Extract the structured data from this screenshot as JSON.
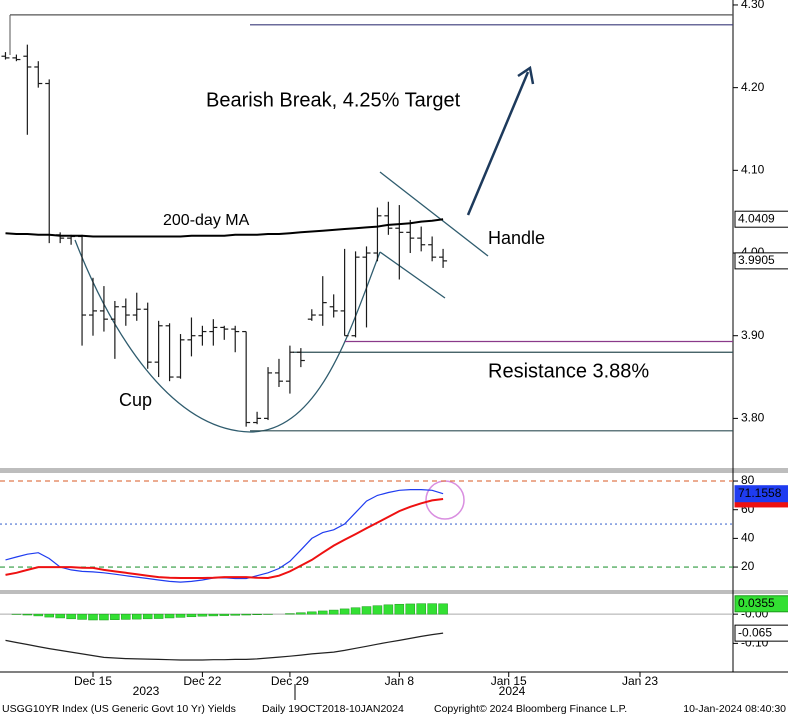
{
  "chart_data": [
    {
      "type": "ohlc",
      "categories": [
        null,
        null,
        null,
        null,
        null,
        null,
        null,
        null,
        null,
        null,
        null,
        null,
        null,
        null,
        null,
        null,
        null,
        null,
        null,
        null,
        null,
        null,
        null,
        null,
        null,
        null,
        null,
        null,
        null,
        null,
        null,
        null,
        null,
        null,
        null,
        null,
        null,
        null,
        null,
        null,
        null
      ],
      "xlim": [
        -0.5,
        66.5
      ],
      "xticks": [
        {
          "value": 8,
          "label": "Dec 15"
        },
        {
          "value": 18,
          "label": "Dec 22"
        },
        {
          "value": 26,
          "label": "Dec 29"
        },
        {
          "value": 36,
          "label": "Jan 8"
        },
        {
          "value": 46,
          "label": "Jan 15"
        },
        {
          "value": 58,
          "label": "Jan 23"
        }
      ],
      "open": [
        4.238,
        4.236,
        4.238,
        4.225,
        4.205,
        4.022,
        4.018,
        4.02,
        3.925,
        3.93,
        3.92,
        3.935,
        3.925,
        3.932,
        3.868,
        3.912,
        3.85,
        3.895,
        3.9,
        3.905,
        3.91,
        3.908,
        3.905,
        3.795,
        3.8,
        3.855,
        3.845,
        3.88,
        3.92,
        3.925,
        3.935,
        3.93,
        3.9,
        3.995,
        4.0,
        4.045,
        4.03,
        4.025,
        4.018,
        4.01,
        3.995
      ],
      "high": [
        4.243,
        4.24,
        4.252,
        4.232,
        4.21,
        4.025,
        4.022,
        4.022,
        3.97,
        3.96,
        3.942,
        3.945,
        3.952,
        3.94,
        3.918,
        3.915,
        3.902,
        3.922,
        3.912,
        3.92,
        3.912,
        3.912,
        3.905,
        3.808,
        3.862,
        3.872,
        3.888,
        3.885,
        3.932,
        3.972,
        3.95,
        4.005,
        4.002,
        4.008,
        4.055,
        4.062,
        4.058,
        4.04,
        4.032,
        4.02,
        4.005
      ],
      "low": [
        4.234,
        4.232,
        4.143,
        4.2,
        4.012,
        4.012,
        4.01,
        3.888,
        3.9,
        3.905,
        3.872,
        3.912,
        3.918,
        3.86,
        3.85,
        3.845,
        3.848,
        3.875,
        3.888,
        3.888,
        3.895,
        3.88,
        3.79,
        3.793,
        3.798,
        3.838,
        3.83,
        3.862,
        3.918,
        3.912,
        3.922,
        3.9,
        3.898,
        3.91,
        3.99,
        4.022,
        3.968,
        4.0,
        4.002,
        3.99,
        3.982
      ],
      "close": [
        4.236,
        4.234,
        4.225,
        4.205,
        4.022,
        4.018,
        4.02,
        3.925,
        3.93,
        3.92,
        3.935,
        3.925,
        3.932,
        3.868,
        3.912,
        3.85,
        3.895,
        3.9,
        3.905,
        3.91,
        3.908,
        3.905,
        3.795,
        3.8,
        3.855,
        3.845,
        3.88,
        3.87,
        3.925,
        3.94,
        3.93,
        3.9,
        3.995,
        4.0,
        4.045,
        4.03,
        4.025,
        4.018,
        4.01,
        3.995,
        3.9905
      ],
      "color": "#1a1a1a",
      "series": [
        {
          "name": "200-day MA",
          "color": "#000000",
          "values": [
            4.024,
            4.023,
            4.023,
            4.022,
            4.022,
            4.021,
            4.021,
            4.021,
            4.02,
            4.02,
            4.02,
            4.02,
            4.02,
            4.02,
            4.02,
            4.02,
            4.02,
            4.021,
            4.021,
            4.021,
            4.021,
            4.022,
            4.022,
            4.022,
            4.023,
            4.023,
            4.024,
            4.025,
            4.026,
            4.027,
            4.028,
            4.029,
            4.03,
            4.031,
            4.032,
            4.034,
            4.035,
            4.036,
            4.038,
            4.039,
            4.0409
          ]
        }
      ],
      "ylim": [
        3.74,
        4.306
      ],
      "yticks": [
        {
          "value": 4.3,
          "label": "4.30"
        },
        {
          "value": 4.2,
          "label": "4.20"
        },
        {
          "value": 4.1,
          "label": "4.10"
        },
        {
          "value": 4.0,
          "label": "4.00"
        },
        {
          "value": 3.9,
          "label": "3.90"
        },
        {
          "value": 3.8,
          "label": "3.80"
        }
      ],
      "levels": [
        {
          "value": 4.288,
          "color": "#555555"
        },
        {
          "value": 4.276,
          "color": "#3a3a7a"
        },
        {
          "value": 3.88,
          "color": "#2f4f55"
        },
        {
          "value": 3.893,
          "color": "#8a3a8a"
        },
        {
          "value": 3.785,
          "color": "#2f4f55"
        }
      ],
      "annotations": [
        "Bearish Break, 4.25% Target",
        "Handle",
        "Cup",
        "Resistance 3.88%"
      ]
    },
    {
      "type": "line",
      "series": [
        {
          "color": "#1f3cf0",
          "values": [
            25,
            27,
            29,
            30,
            26,
            20,
            18,
            17,
            16.6,
            16,
            15,
            14,
            13,
            12,
            11,
            10,
            9.5,
            10,
            11,
            12.4,
            12.5,
            12,
            12,
            14,
            16,
            19,
            24,
            32,
            40,
            44,
            46,
            50,
            58,
            66,
            70,
            72,
            73.5,
            74,
            74,
            73.5,
            71.1558
          ]
        },
        {
          "color": "#ee1111",
          "values": [
            14.5,
            16,
            18,
            20,
            20,
            20,
            20,
            19.5,
            19.4,
            18,
            17,
            16,
            15,
            14,
            13,
            12.5,
            12.4,
            12.4,
            12.4,
            12.5,
            13,
            13,
            13,
            12.5,
            12.4,
            14,
            17,
            21,
            25,
            30,
            35,
            39,
            43,
            47,
            51,
            55,
            59,
            62,
            64.5,
            66.5,
            67.5
          ]
        }
      ],
      "ylim": [
        4,
        85.6
      ],
      "yticks": [
        80,
        60,
        40,
        20
      ],
      "levels": [
        {
          "value": 80,
          "color": "#e07a4f"
        },
        {
          "value": 50,
          "color": "#4a6fd0"
        },
        {
          "value": 20,
          "color": "#2e9a3e"
        }
      ]
    },
    {
      "type": "bar",
      "values": [
        0,
        -0.001,
        -0.003,
        -0.006,
        -0.01,
        -0.013,
        -0.016,
        -0.018,
        -0.02,
        -0.02,
        -0.019,
        -0.018,
        -0.017,
        -0.016,
        -0.015,
        -0.013,
        -0.011,
        -0.009,
        -0.007,
        -0.006,
        -0.005,
        -0.004,
        -0.003,
        -0.002,
        -0.001,
        0,
        0.002,
        0.005,
        0.008,
        0.011,
        0.014,
        0.018,
        0.022,
        0.026,
        0.029,
        0.032,
        0.034,
        0.035,
        0.036,
        0.036,
        0.0355
      ],
      "color": "#33e033",
      "series": [
        {
          "color": "#222222",
          "values": [
            -0.09,
            -0.097,
            -0.104,
            -0.111,
            -0.118,
            -0.124,
            -0.13,
            -0.136,
            -0.142,
            -0.148,
            -0.15,
            -0.152,
            -0.153,
            -0.154,
            -0.155,
            -0.156,
            -0.157,
            -0.157,
            -0.157,
            -0.156,
            -0.156,
            -0.155,
            -0.155,
            -0.153,
            -0.15,
            -0.147,
            -0.144,
            -0.14,
            -0.136,
            -0.133,
            -0.13,
            -0.124,
            -0.117,
            -0.11,
            -0.103,
            -0.096,
            -0.09,
            -0.083,
            -0.076,
            -0.07,
            -0.065
          ]
        }
      ],
      "ylim": [
        -0.198,
        0.069
      ],
      "yticks": [
        {
          "value": 0,
          "label": "-0.00"
        },
        {
          "value": -0.1,
          "label": "-0.10"
        }
      ]
    }
  ],
  "years": [
    "2023",
    "2024"
  ],
  "footer": {
    "ticker": "USGG10YR Index (US Generic Govt 10 Yr) Yields",
    "range": "Daily 19OCT2018-10JAN2024",
    "copyright": "Copyright© 2024 Bloomberg Finance L.P.",
    "timestamp": "10-Jan-2024 08:40:30"
  }
}
